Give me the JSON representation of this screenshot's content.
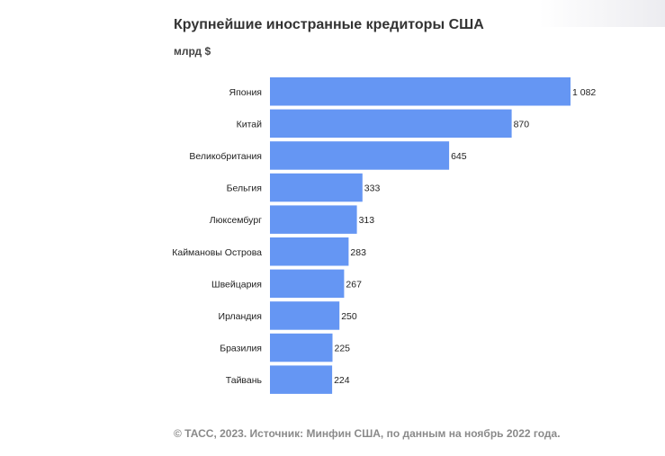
{
  "title": "Крупнейшие иностранные кредиторы США",
  "unit": "млрд $",
  "footer": "© ТАСС, 2023. Источник: Минфин США, по данным на ноябрь 2022 года.",
  "colors": {
    "bar": "#6596f3",
    "text": "#222222",
    "footer": "#8a8a8a"
  },
  "chart_data": {
    "type": "bar",
    "orientation": "horizontal",
    "categories": [
      "Япония",
      "Китай",
      "Великобритания",
      "Бельгия",
      "Люксембург",
      "Каймановы Острова",
      "Швейцария",
      "Ирландия",
      "Бразилия",
      "Тайвань"
    ],
    "values": [
      1082,
      870,
      645,
      333,
      313,
      283,
      267,
      250,
      225,
      224
    ],
    "value_labels": [
      "1 082",
      "870",
      "645",
      "333",
      "313",
      "283",
      "267",
      "250",
      "225",
      "224"
    ],
    "title": "Крупнейшие иностранные кредиторы США",
    "unit": "млрд $",
    "xlim": [
      0,
      1082
    ],
    "grid": false,
    "legend": "none"
  }
}
